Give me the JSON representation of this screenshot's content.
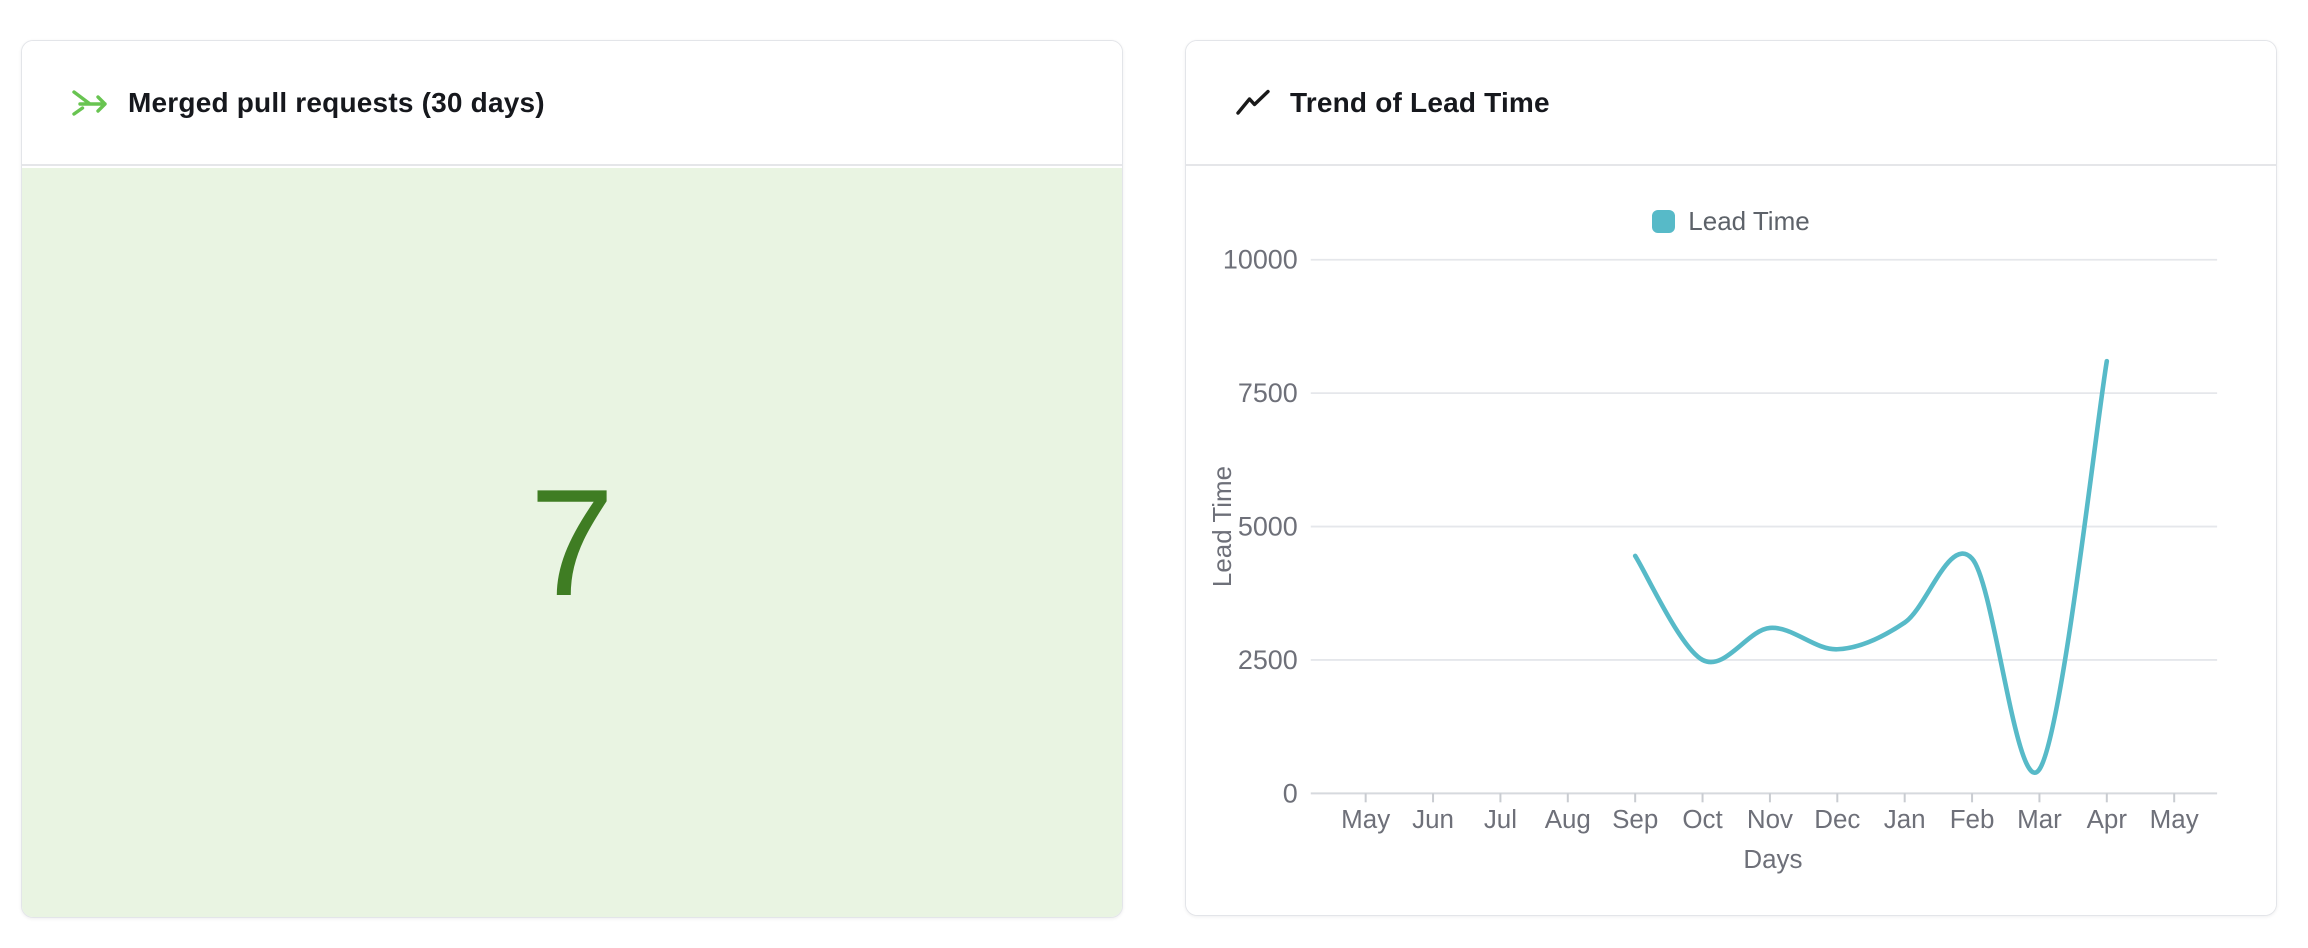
{
  "cards": {
    "merged_prs": {
      "title": "Merged pull requests (30 days)",
      "value": "7",
      "icon": "merge-arrow-icon",
      "colors": {
        "icon": "#68c451",
        "value_text": "#3f7d23",
        "panel_bg": "#e9f4e2"
      }
    },
    "lead_time": {
      "title": "Trend of Lead Time",
      "icon": "trend-line-icon",
      "colors": {
        "icon": "#1a1a1a"
      }
    }
  },
  "chart_data": {
    "type": "line",
    "title": "Trend of Lead Time",
    "x": [
      "May",
      "Jun",
      "Jul",
      "Aug",
      "Sep",
      "Oct",
      "Nov",
      "Dec",
      "Jan",
      "Feb",
      "Mar",
      "Apr",
      "May"
    ],
    "xlabel": "Days",
    "ylabel": "Lead Time",
    "ylim": [
      0,
      10000
    ],
    "yticks": [
      0,
      2500,
      5000,
      7500,
      10000
    ],
    "grid": true,
    "legend_position": "top-center",
    "smooth": true,
    "series": [
      {
        "name": "Lead Time",
        "color": "#57bac8",
        "values": [
          null,
          null,
          null,
          null,
          4450,
          2500,
          3100,
          2700,
          3200,
          4400,
          450,
          8100,
          null
        ]
      }
    ],
    "style": {
      "grid_color": "#e5e7eb",
      "axis_line_color": "#d6d9de",
      "tick_color": "#c9ccd1",
      "axis_text_color": "#6e7079"
    }
  }
}
